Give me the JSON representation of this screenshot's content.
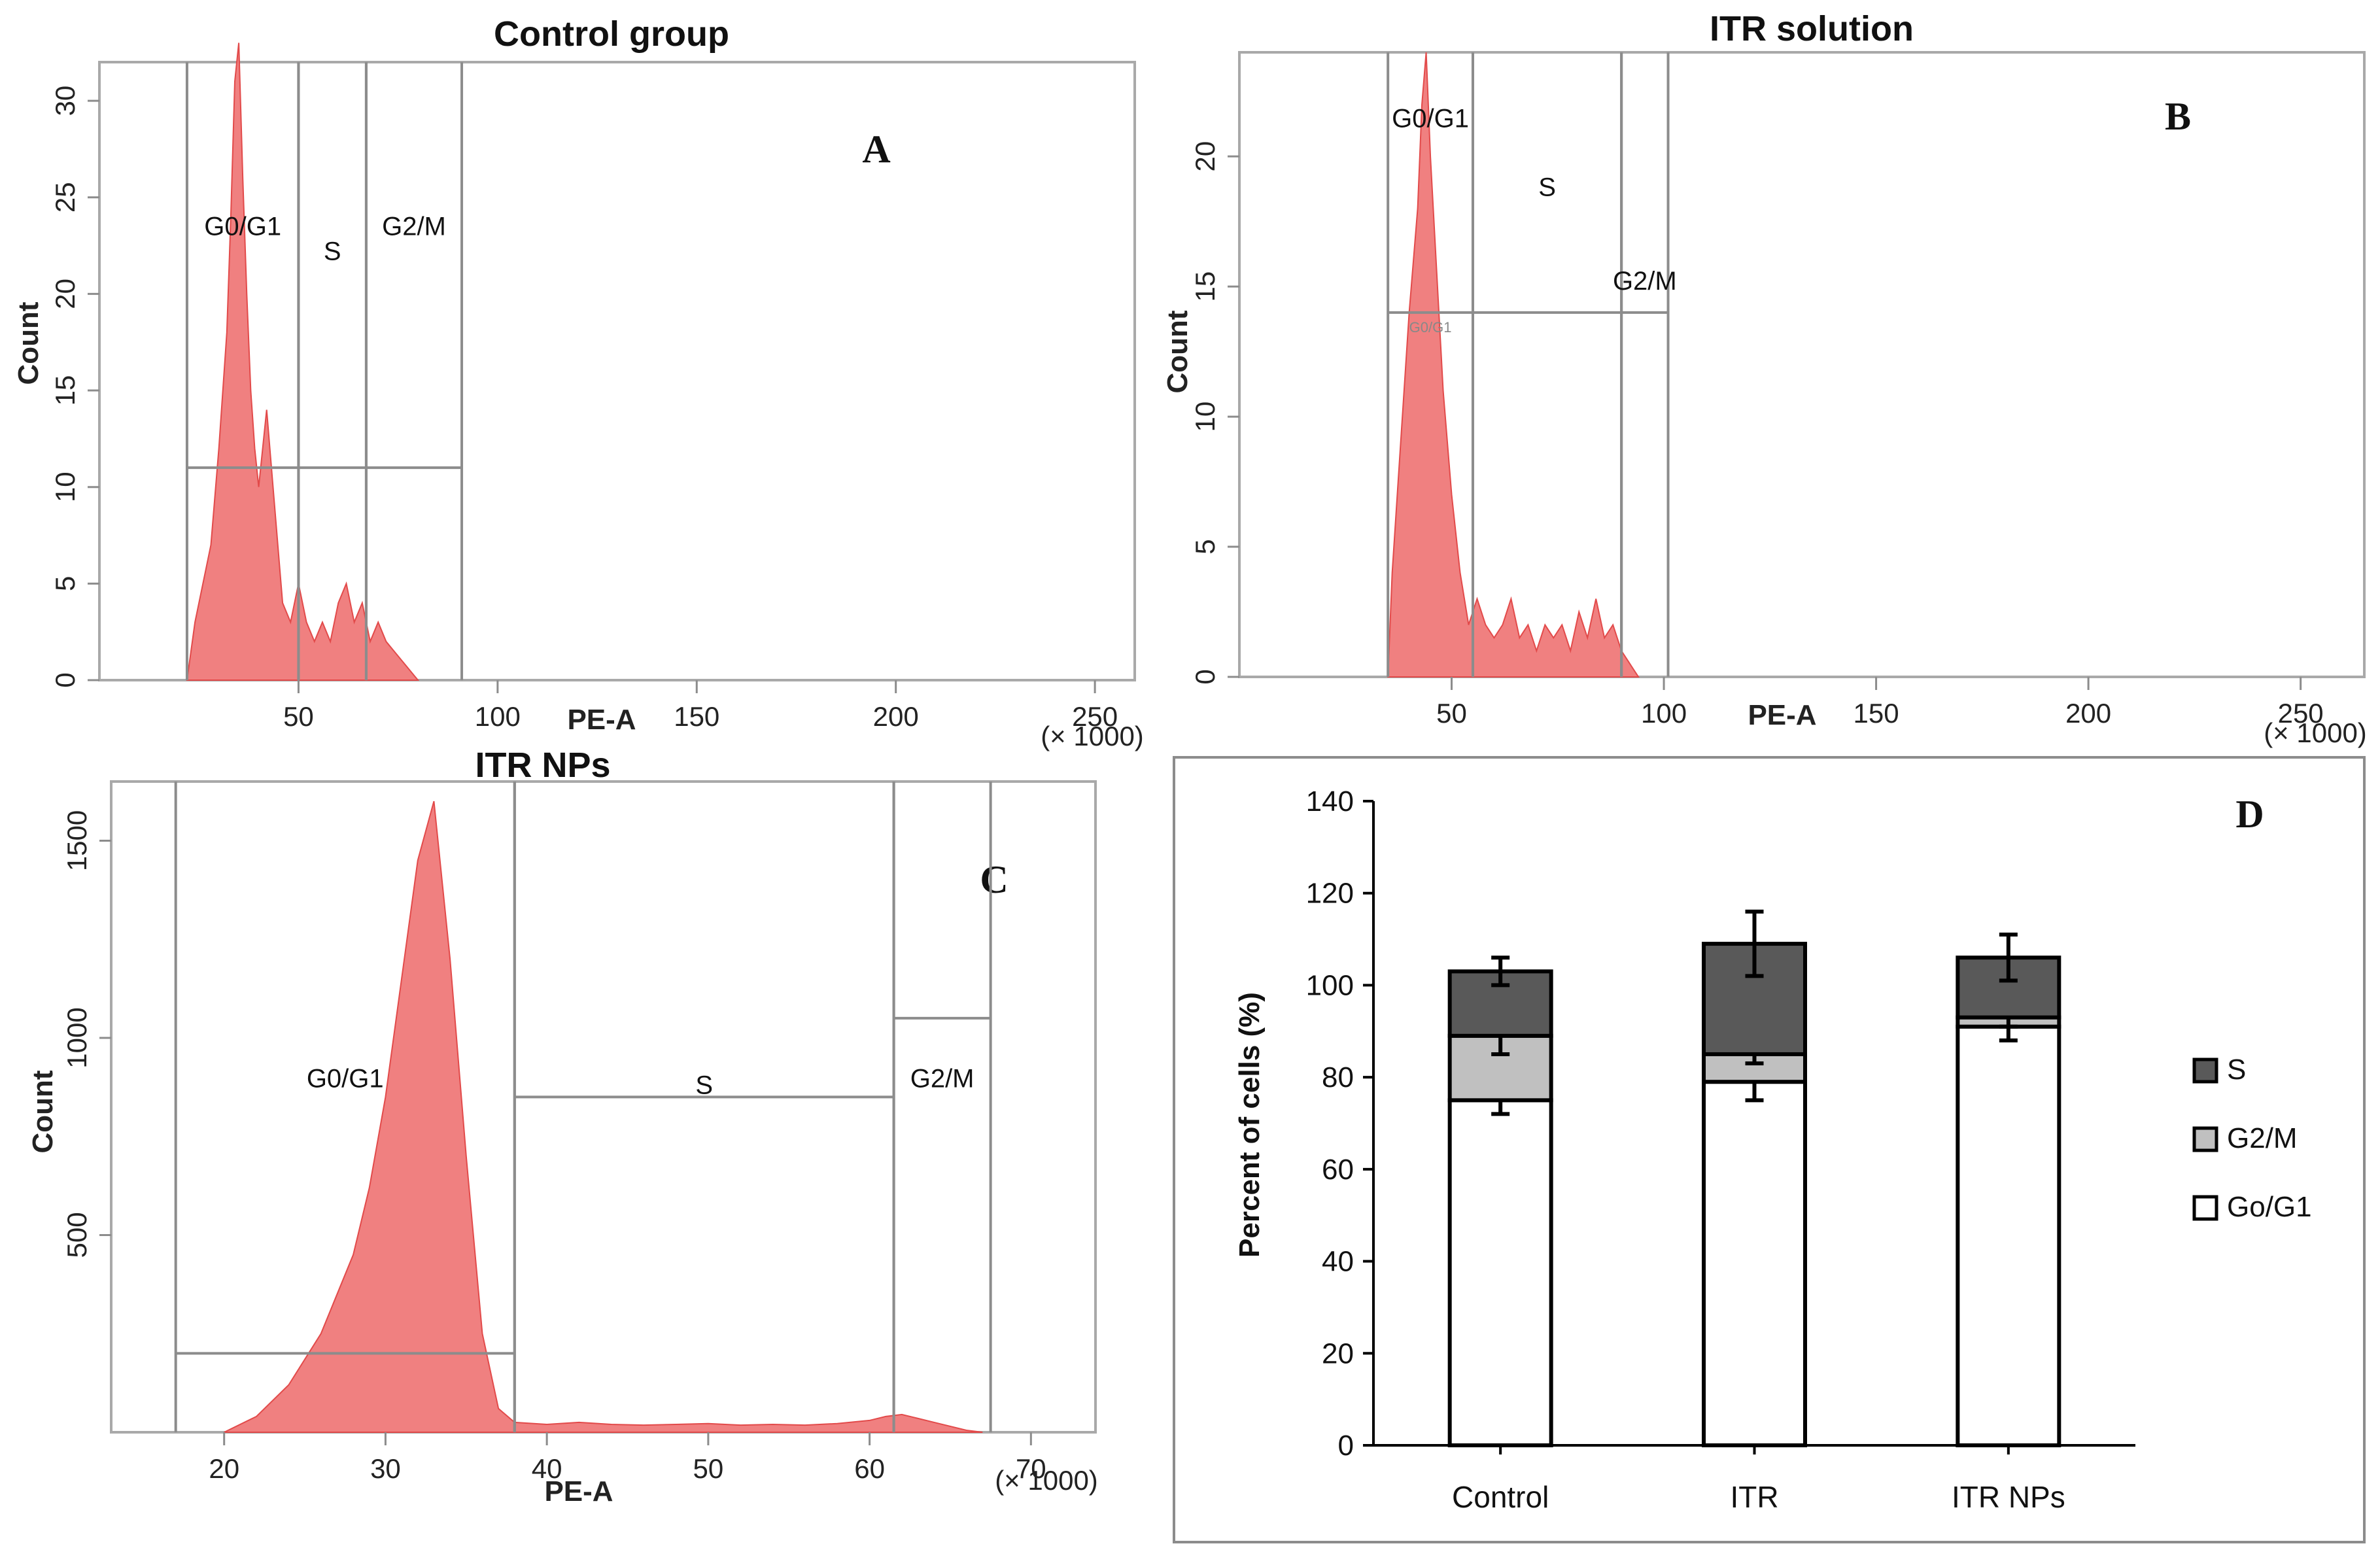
{
  "figure_units_note": "(× 1000)",
  "chart_data": [
    {
      "id": "A",
      "type": "area",
      "title": "Control group",
      "panel_label": "A",
      "xlabel": "PE-A",
      "ylabel": "Count",
      "x_units": "(× 1000)",
      "xlim": [
        0,
        260
      ],
      "ylim": [
        0,
        32
      ],
      "x_ticks": [
        50,
        100,
        150,
        200,
        250
      ],
      "y_ticks": [
        0,
        5,
        10,
        15,
        20,
        25,
        30
      ],
      "x_tick_labels": [
        "50",
        "100",
        "150",
        "200",
        "250"
      ],
      "y_tick_labels": [
        "0",
        "5",
        "10",
        "15",
        "20",
        "25",
        "30"
      ],
      "histogram": {
        "x": [
          22,
          24,
          26,
          28,
          30,
          32,
          33,
          34,
          35,
          36,
          37,
          38,
          39,
          40,
          42,
          44,
          46,
          48,
          50,
          52,
          54,
          56,
          58,
          60,
          62,
          64,
          66,
          68,
          70,
          72,
          74,
          76,
          78,
          80
        ],
        "y": [
          0,
          3,
          5,
          7,
          12,
          18,
          24,
          31,
          33,
          26,
          20,
          15,
          12,
          10,
          14,
          9,
          4,
          3,
          5,
          3,
          2,
          3,
          2,
          4,
          5,
          3,
          4,
          2,
          3,
          2,
          1.5,
          1,
          0.5,
          0
        ]
      },
      "gates": [
        {
          "name": "G0/G1",
          "label": "G0/G1",
          "x_start": 22,
          "x_end": 50,
          "y_level": 11
        },
        {
          "name": "S",
          "label": "S",
          "x_start": 50,
          "x_end": 67,
          "y_level": 11
        },
        {
          "name": "G2/M",
          "label": "G2/M",
          "x_start": 67,
          "x_end": 91,
          "y_level": 11
        }
      ]
    },
    {
      "id": "B",
      "type": "area",
      "title": "ITR solution",
      "panel_label": "B",
      "xlabel": "PE-A",
      "ylabel": "Count",
      "x_units": "(× 1000)",
      "xlim": [
        0,
        265
      ],
      "ylim": [
        0,
        24
      ],
      "x_ticks": [
        50,
        100,
        150,
        200,
        250
      ],
      "y_ticks": [
        0,
        5,
        10,
        15,
        20
      ],
      "x_tick_labels": [
        "50",
        "100",
        "150",
        "200",
        "250"
      ],
      "y_tick_labels": [
        "0",
        "5",
        "10",
        "15",
        "20"
      ],
      "histogram": {
        "x": [
          35,
          36,
          38,
          40,
          42,
          43,
          44,
          45,
          46,
          47,
          48,
          50,
          52,
          54,
          56,
          58,
          60,
          62,
          64,
          66,
          68,
          70,
          72,
          74,
          76,
          78,
          80,
          82,
          84,
          86,
          88,
          90,
          92,
          94
        ],
        "y": [
          0,
          4,
          9,
          14,
          18,
          22,
          24,
          20,
          17,
          14,
          11,
          7,
          4,
          2,
          3,
          2,
          1.5,
          2,
          3,
          1.5,
          2,
          1,
          2,
          1.5,
          2,
          1,
          2.5,
          1.5,
          3,
          1.5,
          2,
          1,
          0.5,
          0
        ]
      },
      "gates": [
        {
          "name": "G0/G1",
          "label": "G0/G1",
          "x_start": 35,
          "x_end": 55,
          "y_level": 14
        },
        {
          "name": "S",
          "label": "S",
          "x_start": 55,
          "x_end": 90,
          "y_level": 14
        },
        {
          "name": "G2/M",
          "label": "G2/M",
          "x_start": 90,
          "x_end": 101,
          "y_level": 14
        }
      ],
      "small_gate_tag": "G0/G1"
    },
    {
      "id": "C",
      "type": "area",
      "title": "ITR NPs",
      "panel_label": "C",
      "xlabel": "PE-A",
      "ylabel": "Count",
      "x_units": "(× 1000)",
      "xlim": [
        13,
        74
      ],
      "ylim": [
        0,
        1650
      ],
      "x_ticks": [
        20,
        30,
        40,
        50,
        60,
        70
      ],
      "y_ticks": [
        500,
        1000,
        1500
      ],
      "x_tick_labels": [
        "20",
        "30",
        "40",
        "50",
        "60",
        "70"
      ],
      "y_tick_labels": [
        "500",
        "1000",
        "1500"
      ],
      "histogram": {
        "x": [
          20,
          22,
          24,
          26,
          28,
          29,
          30,
          31,
          32,
          33,
          34,
          35,
          36,
          37,
          38,
          40,
          42,
          44,
          46,
          48,
          50,
          52,
          54,
          56,
          58,
          60,
          61,
          62,
          63,
          64,
          65,
          66,
          67
        ],
        "y": [
          0,
          40,
          120,
          250,
          450,
          620,
          850,
          1150,
          1450,
          1600,
          1200,
          700,
          250,
          60,
          25,
          20,
          25,
          20,
          18,
          20,
          22,
          18,
          20,
          18,
          22,
          30,
          40,
          45,
          35,
          25,
          15,
          5,
          0
        ]
      },
      "gates": [
        {
          "name": "G0/G1",
          "label": "G0/G1",
          "x_start": 17,
          "x_end": 38,
          "y_level": 200
        },
        {
          "name": "S",
          "label": "S",
          "x_start": 38,
          "x_end": 61.5,
          "y_level": 850
        },
        {
          "name": "G2/M",
          "label": "G2/M",
          "x_start": 61.5,
          "x_end": 67.5,
          "y_level": 1050
        }
      ]
    },
    {
      "id": "D",
      "type": "bar",
      "stacked": true,
      "panel_label": "D",
      "ylabel": "Percent of cells (%)",
      "categories": [
        "Control",
        "ITR",
        "ITR NPs"
      ],
      "ylim": [
        0,
        140
      ],
      "y_ticks": [
        0,
        20,
        40,
        60,
        80,
        100,
        120,
        140
      ],
      "y_tick_labels": [
        "0",
        "20",
        "40",
        "60",
        "80",
        "100",
        "120",
        "140"
      ],
      "series": [
        {
          "name": "Go/G1",
          "color": "#ffffff",
          "values": [
            75,
            79,
            91
          ],
          "errors": [
            3,
            4,
            3
          ]
        },
        {
          "name": "G2/M",
          "color": "#c0c0c0",
          "values": [
            14,
            6,
            2
          ],
          "errors": [
            4,
            2,
            2
          ]
        },
        {
          "name": "S",
          "color": "#595959",
          "values": [
            14,
            24,
            13
          ],
          "errors": [
            3,
            7,
            5
          ]
        }
      ],
      "legend": {
        "position": "right",
        "items": [
          "S",
          "G2/M",
          "Go/G1"
        ]
      }
    }
  ]
}
